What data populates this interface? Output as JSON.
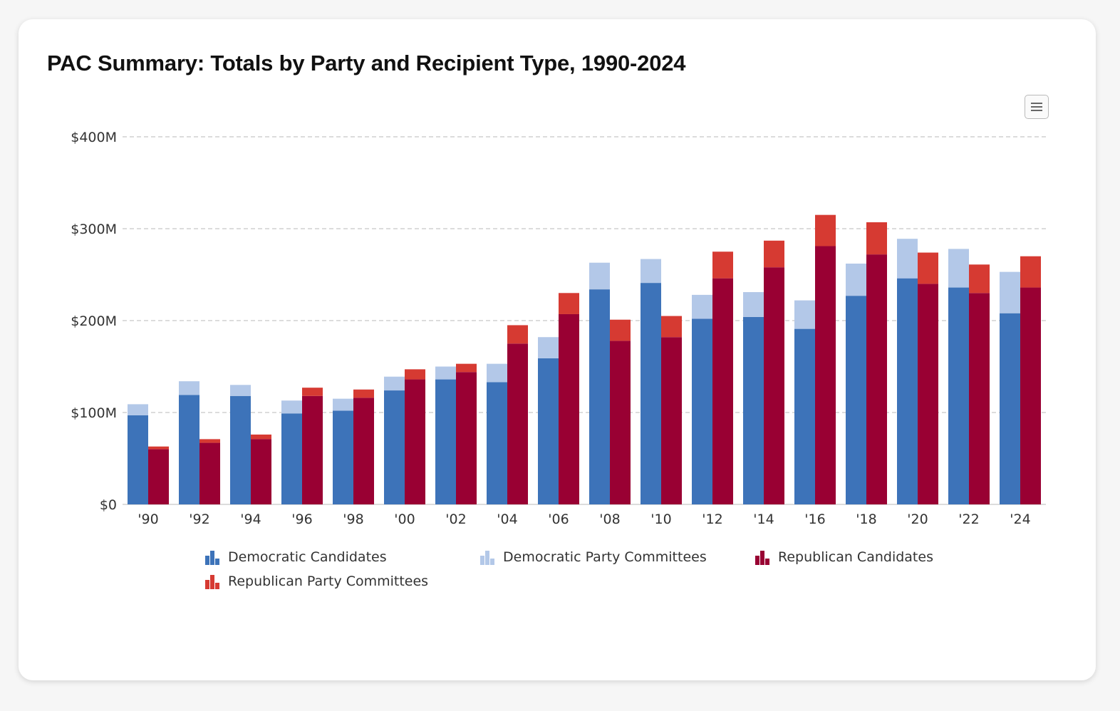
{
  "title": "PAC Summary: Totals by Party and Recipient Type, 1990-2024",
  "menu": {
    "icon": "hamburger-menu-icon"
  },
  "colors": {
    "dem_candidates": "#3d73b9",
    "dem_committees": "#b3c8e8",
    "rep_candidates": "#990033",
    "rep_committees": "#d63a32",
    "grid": "#c8c8c8",
    "axis_text": "#333333"
  },
  "chart_data": {
    "type": "bar",
    "stacked": true,
    "grid": true,
    "legend_position": "bottom",
    "title": "PAC Summary: Totals by Party and Recipient Type, 1990-2024",
    "xlabel": "",
    "ylabel": "",
    "ylim": [
      0,
      400
    ],
    "yticks": [
      0,
      100,
      200,
      300,
      400
    ],
    "ytick_labels": [
      "$0",
      "$100M",
      "$200M",
      "$300M",
      "$400M"
    ],
    "categories": [
      "'90",
      "'92",
      "'94",
      "'96",
      "'98",
      "'00",
      "'02",
      "'04",
      "'06",
      "'08",
      "'10",
      "'12",
      "'14",
      "'16",
      "'18",
      "'20",
      "'22",
      "'24"
    ],
    "series": [
      {
        "name": "Democratic Candidates",
        "stack": "Democratic",
        "color": "#3d73b9",
        "values": [
          97,
          119,
          118,
          99,
          102,
          124,
          136,
          133,
          159,
          234,
          241,
          202,
          204,
          191,
          227,
          246,
          236,
          208
        ]
      },
      {
        "name": "Democratic Party Committees",
        "stack": "Democratic",
        "color": "#b3c8e8",
        "values": [
          12,
          15,
          12,
          14,
          13,
          15,
          14,
          20,
          23,
          29,
          26,
          26,
          27,
          31,
          35,
          43,
          42,
          45
        ]
      },
      {
        "name": "Republican Candidates",
        "stack": "Republican",
        "color": "#990033",
        "values": [
          60,
          67,
          71,
          118,
          116,
          136,
          144,
          175,
          207,
          178,
          182,
          246,
          258,
          281,
          272,
          240,
          230,
          236
        ]
      },
      {
        "name": "Republican Party Committees",
        "stack": "Republican",
        "color": "#d63a32",
        "values": [
          3,
          4,
          5,
          9,
          9,
          11,
          9,
          20,
          23,
          23,
          23,
          29,
          29,
          34,
          35,
          34,
          31,
          34
        ]
      }
    ]
  },
  "legend": [
    {
      "label": "Democratic Candidates",
      "color": "#3d73b9",
      "icon": "bar-chart-icon"
    },
    {
      "label": "Democratic Party Committees",
      "color": "#b3c8e8",
      "icon": "bar-chart-icon"
    },
    {
      "label": "Republican Candidates",
      "color": "#990033",
      "icon": "bar-chart-icon"
    },
    {
      "label": "Republican Party Committees",
      "color": "#d63a32",
      "icon": "bar-chart-icon"
    }
  ]
}
